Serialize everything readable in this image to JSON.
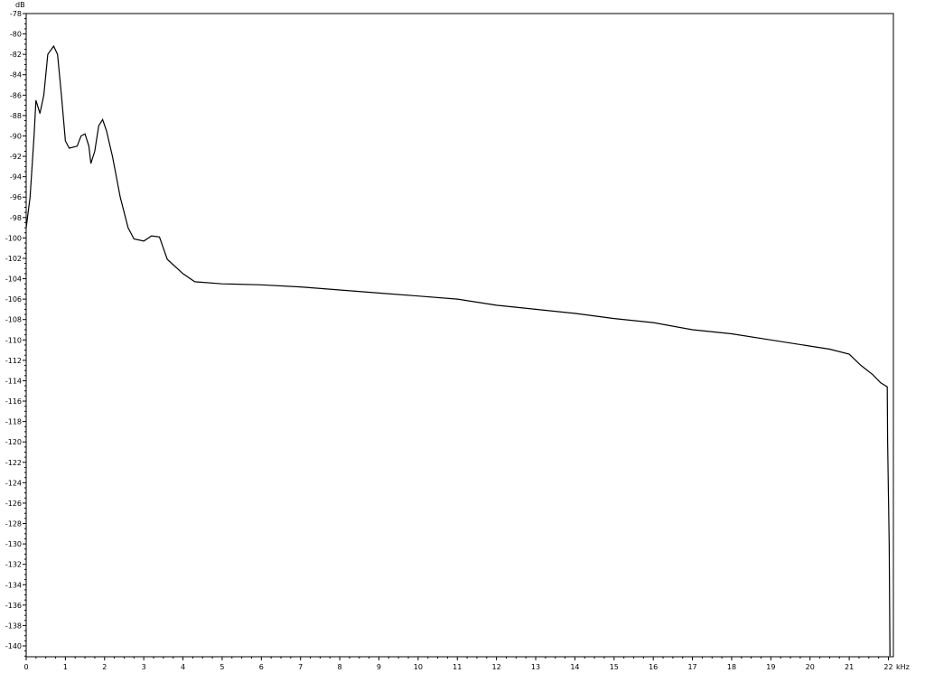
{
  "chart_data": {
    "type": "line",
    "title": "",
    "xlabel": "kHz",
    "ylabel": "dB",
    "xlim": [
      0,
      22.1
    ],
    "ylim": [
      -141,
      -78
    ],
    "x_ticks": [
      0,
      1,
      2,
      3,
      4,
      5,
      6,
      7,
      8,
      9,
      10,
      11,
      12,
      13,
      14,
      15,
      16,
      17,
      18,
      19,
      20,
      21,
      22
    ],
    "y_ticks": [
      -78,
      -80,
      -82,
      -84,
      -86,
      -88,
      -90,
      -92,
      -94,
      -96,
      -98,
      -100,
      -102,
      -104,
      -106,
      -108,
      -110,
      -112,
      -114,
      -116,
      -118,
      -120,
      -122,
      -124,
      -126,
      -128,
      -130,
      -132,
      -134,
      -136,
      -138,
      -140
    ],
    "grid": false,
    "line_color": "#000000",
    "series": [
      {
        "x": [
          0,
          0.1,
          0.2,
          0.25,
          0.35,
          0.45,
          0.55,
          0.7,
          0.8,
          0.9,
          1.0,
          1.1,
          1.3,
          1.4,
          1.5,
          1.6,
          1.65,
          1.75,
          1.85,
          1.95,
          2.05,
          2.2,
          2.4,
          2.6,
          2.75,
          3.0,
          3.2,
          3.4,
          3.6,
          4.0,
          4.3,
          5,
          6,
          7,
          8,
          9,
          10,
          11,
          12,
          13,
          14,
          15,
          16,
          17,
          18,
          19,
          20,
          20.5,
          21,
          21.3,
          21.6,
          21.8,
          21.97,
          21.98,
          22.02,
          22.04
        ],
        "y": [
          -99,
          -96,
          -90,
          -86.5,
          -87.8,
          -86,
          -82,
          -81.2,
          -82,
          -86,
          -90.5,
          -91.2,
          -91,
          -90,
          -89.8,
          -91,
          -92.7,
          -91.5,
          -89,
          -88.4,
          -89.5,
          -92,
          -96,
          -99,
          -100.1,
          -100.3,
          -99.8,
          -99.9,
          -102.1,
          -103.5,
          -104.3,
          -104.5,
          -104.6,
          -104.8,
          -105.1,
          -105.4,
          -105.7,
          -106,
          -106.6,
          -107,
          -107.4,
          -107.9,
          -108.3,
          -109,
          -109.4,
          -110,
          -110.6,
          -110.9,
          -111.4,
          -112.5,
          -113.4,
          -114.2,
          -114.6,
          -119.9,
          -130.3,
          -141
        ]
      }
    ]
  }
}
